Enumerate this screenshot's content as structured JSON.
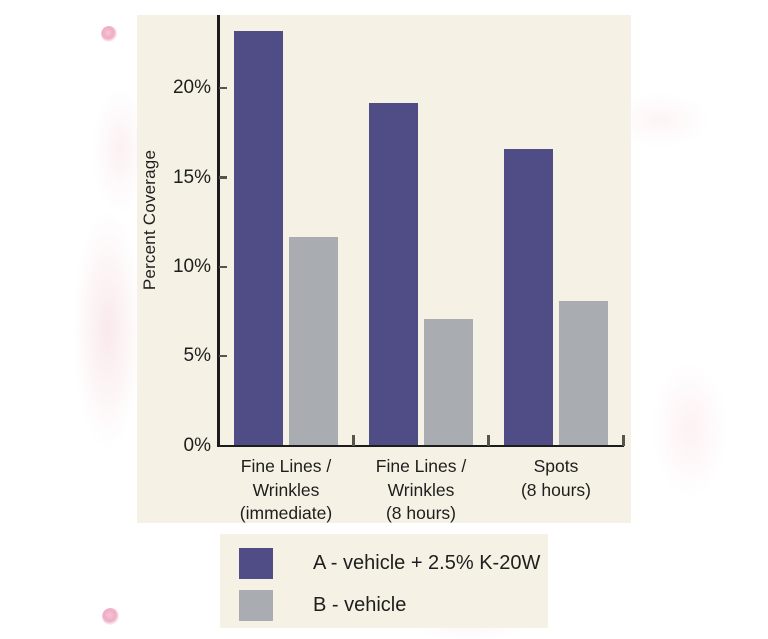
{
  "page": {
    "background_color": "#ffffff",
    "decorations": [
      "pink-dot-top-left",
      "pink-dot-bottom-left",
      "faint-pink-washes"
    ]
  },
  "chart_data": {
    "type": "bar",
    "title": "",
    "xlabel": "",
    "ylabel": "Percent Coverage",
    "categories": [
      "Fine Lines / Wrinkles (immediate)",
      "Fine Lines / Wrinkles (8 hours)",
      "Spots (8 hours)"
    ],
    "category_label_lines": [
      [
        "Fine Lines /",
        "Wrinkles",
        "(immediate)"
      ],
      [
        "Fine Lines /",
        "Wrinkles",
        "(8 hours)"
      ],
      [
        "Spots",
        "(8 hours)"
      ]
    ],
    "series": [
      {
        "name": "A - vehicle + 2.5% K-20W",
        "color": "#504c86",
        "values": [
          23.2,
          19.2,
          16.6
        ]
      },
      {
        "name": "B - vehicle",
        "color": "#a9acb0",
        "values": [
          11.7,
          7.1,
          8.1
        ]
      }
    ],
    "yticks": [
      0,
      5,
      10,
      15,
      20
    ],
    "ytick_labels": [
      "0%",
      "5%",
      "10%",
      "15%",
      "20%"
    ],
    "ylim": [
      0,
      24.1
    ],
    "grid": false,
    "legend_position": "below-chart",
    "panel_background": "#f5f1e4",
    "axis_color": "#1c1c1c"
  }
}
